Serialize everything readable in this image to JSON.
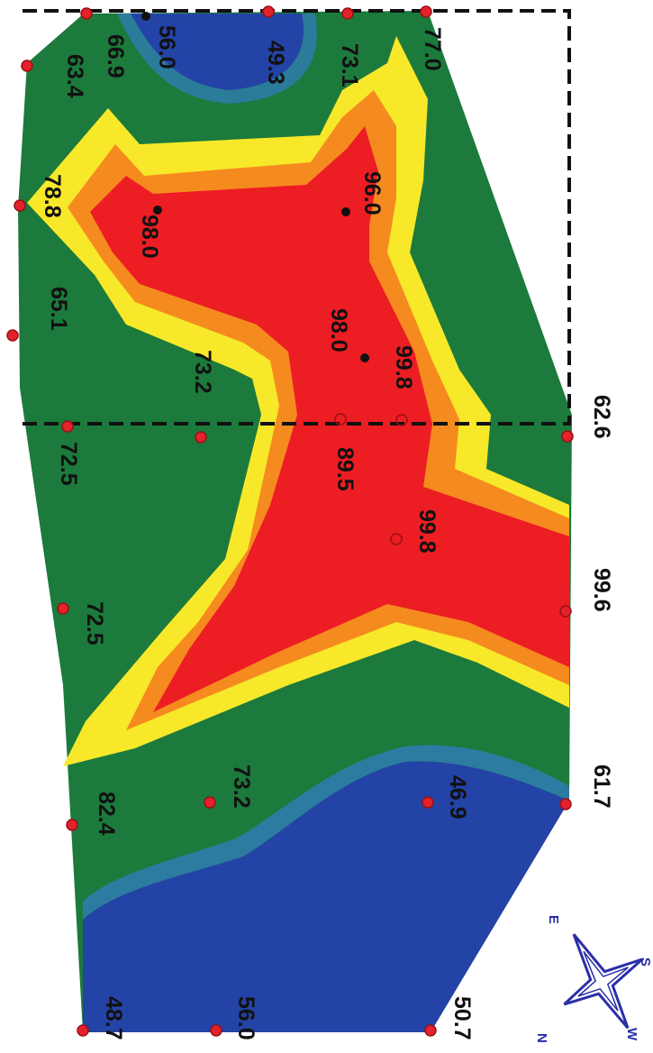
{
  "colors": {
    "blue": "#2443a6",
    "blue_light": "#2f7cb3",
    "green": "#1c7a3c",
    "yellow": "#f7e82a",
    "orange": "#f58a1f",
    "red": "#ed1d24",
    "marker": "#e3222b",
    "survey_box": "#111111",
    "compass": "#2b2fa6"
  },
  "compass": {
    "icon": "compass-star-icon",
    "north": "N",
    "east": "E",
    "south": "S",
    "west": "W"
  },
  "labels": {
    "p0": "63.4",
    "p1": "66.9",
    "p2": "56.0",
    "p3": "49.3",
    "p4": "73.1",
    "p5": "77.0",
    "p6": "78.8",
    "p7": "98.0",
    "p8": "96.0",
    "p9": "65.1",
    "p10": "73.2",
    "p11": "98.0",
    "p12": "99.8",
    "p13": "72.5",
    "p14": "89.5",
    "p15": "62.6",
    "p16": "72.5",
    "p17": "99.8",
    "p18": "99.6",
    "p19": "82.4",
    "p20": "73.2",
    "p21": "46.9",
    "p22": "61.7",
    "p23": "48.7",
    "p24": "56.0",
    "p25": "50.7"
  }
}
